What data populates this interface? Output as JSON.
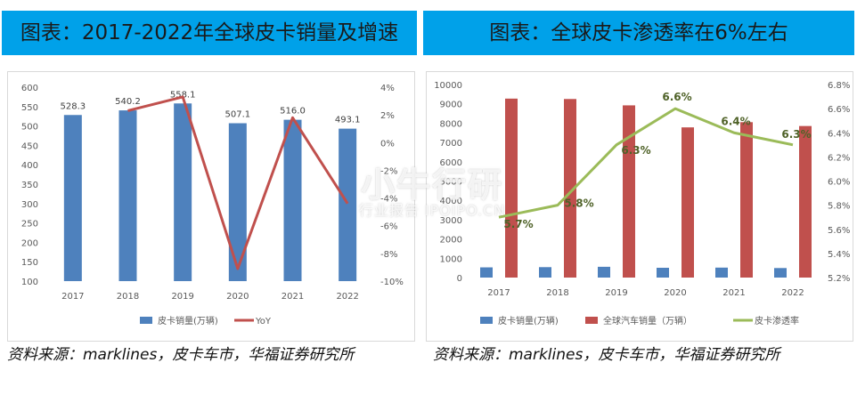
{
  "left_banner": {
    "title": "图表：2017-2022年全球皮卡销量及增速"
  },
  "right_banner": {
    "title": "图表：全球皮卡渗透率在6%左右"
  },
  "left_source": {
    "text": "资料来源：marklines，皮卡车市，华福证券研究所"
  },
  "right_source": {
    "text": "资料来源：marklines，皮卡车市，华福证券研究所"
  },
  "watermark": {
    "main": "小牛行研",
    "sub": "行业报告 IPOIPO.CN"
  },
  "colors": {
    "bar_blue": "#4e81bd",
    "line_red": "#c0504d",
    "bar_red": "#c0504d",
    "line_green": "#9bbb59",
    "label_green": "#4f6228",
    "banner": "#00a1e9"
  },
  "chart_data": [
    {
      "type": "bar",
      "categories": [
        "2017",
        "2018",
        "2019",
        "2020",
        "2021",
        "2022"
      ],
      "series": [
        {
          "name": "皮卡销量(万辆)",
          "type": "bar",
          "axis": "left",
          "values": [
            528.3,
            540.2,
            558.1,
            507.1,
            516.0,
            493.1
          ]
        },
        {
          "name": "YoY",
          "type": "line",
          "axis": "right",
          "values": [
            null,
            2.3,
            3.3,
            -9.1,
            1.8,
            -4.4
          ]
        }
      ],
      "data_labels": [
        "528.3",
        "540.2",
        "558.1",
        "507.1",
        "516.0",
        "493.1"
      ],
      "ylim": [
        100,
        600
      ],
      "yticks": [
        "100",
        "150",
        "200",
        "250",
        "300",
        "350",
        "400",
        "450",
        "500",
        "550",
        "600"
      ],
      "y2lim": [
        -10,
        4
      ],
      "y2ticks": [
        "-10%",
        "-8%",
        "-6%",
        "-4%",
        "-2%",
        "0%",
        "2%",
        "4%"
      ],
      "legend": {
        "position": "bottom",
        "entries": [
          "皮卡销量(万辆)",
          "YoY"
        ]
      },
      "grid": false
    },
    {
      "type": "bar",
      "categories": [
        "2017",
        "2018",
        "2019",
        "2020",
        "2021",
        "2022"
      ],
      "series": [
        {
          "name": "皮卡销量(万辆)",
          "type": "bar",
          "axis": "left",
          "values": [
            528.3,
            540.2,
            558.1,
            507.1,
            516.0,
            493.1
          ]
        },
        {
          "name": "全球汽车销量（万辆）",
          "type": "bar",
          "axis": "left",
          "values": [
            9270,
            9250,
            8920,
            7780,
            8050,
            7850
          ]
        },
        {
          "name": "皮卡渗透率",
          "type": "line",
          "axis": "right",
          "values": [
            5.7,
            5.8,
            6.3,
            6.6,
            6.4,
            6.3
          ]
        }
      ],
      "data_labels": [
        "5.7%",
        "5.8%",
        "6.3%",
        "6.6%",
        "6.4%",
        "6.3%"
      ],
      "ylim": [
        0,
        10000
      ],
      "yticks": [
        "0",
        "1000",
        "2000",
        "3000",
        "4000",
        "5000",
        "6000",
        "7000",
        "8000",
        "9000",
        "10000"
      ],
      "y2lim": [
        5.2,
        6.8
      ],
      "y2ticks": [
        "5.2%",
        "5.4%",
        "5.6%",
        "5.8%",
        "6.0%",
        "6.2%",
        "6.4%",
        "6.6%",
        "6.8%"
      ],
      "legend": {
        "position": "bottom",
        "entries": [
          "皮卡销量(万辆)",
          "全球汽车销量（万辆）",
          "皮卡渗透率"
        ]
      },
      "grid": false
    }
  ]
}
